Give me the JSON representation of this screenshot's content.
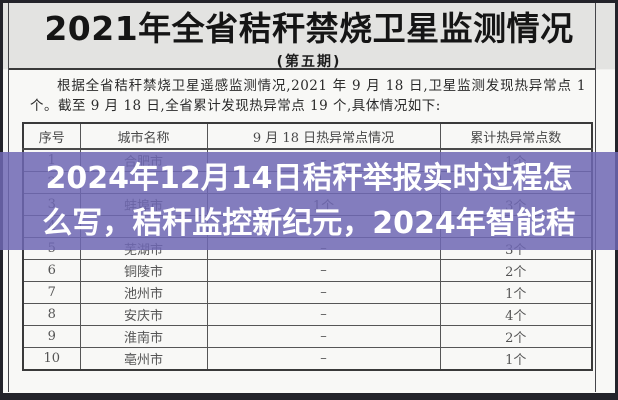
{
  "document": {
    "title": "2021年全省秸秆禁烧卫星监测情况",
    "subtitle": "(第五期)",
    "intro": "根据全省秸秆禁烧卫星遥感监测情况,2021 年 9 月 18 日,卫星监测发现热异常点 1 个。截至 9 月 18 日,全省累计发现热异常点 19 个,具体情况如下:"
  },
  "table": {
    "headers": [
      "序号",
      "城市名称",
      "9 月 18 日热异常点情况",
      "累计热异常点数"
    ],
    "rows": [
      [
        "1",
        "合肥市",
        "–",
        "1个"
      ],
      [
        "2",
        "",
        "",
        ""
      ],
      [
        "3",
        "蚌埠市",
        "1个",
        "3个"
      ],
      [
        "4",
        "",
        "",
        ""
      ],
      [
        "5",
        "芜湖市",
        "–",
        "3个"
      ],
      [
        "6",
        "铜陵市",
        "–",
        "2个"
      ],
      [
        "7",
        "池州市",
        "–",
        "1个"
      ],
      [
        "8",
        "安庆市",
        "–",
        "4个"
      ],
      [
        "9",
        "淮南市",
        "–",
        "2个"
      ],
      [
        "10",
        "亳州市",
        "–",
        "1个"
      ]
    ]
  },
  "overlay": {
    "line1": "2024年12月14日秸秆举报实时过程怎",
    "line2": "么写，秸秆监控新纪元，2024年智能秸",
    "background_color": "#6e67b4",
    "text_color": "#ffffff"
  }
}
